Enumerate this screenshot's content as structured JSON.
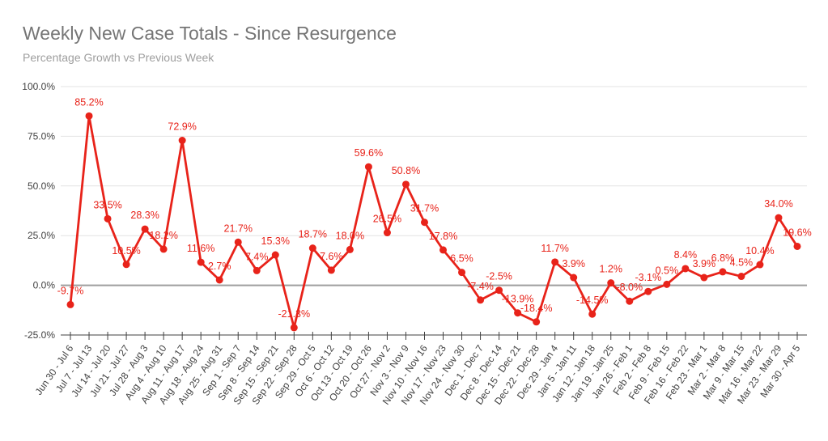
{
  "header": {
    "title": "Weekly New Case Totals - Since Resurgence",
    "subtitle": "Percentage Growth vs Previous Week"
  },
  "chart_data": {
    "type": "line",
    "title": "Weekly New Case Totals - Since Resurgence",
    "subtitle": "Percentage Growth vs Previous Week",
    "xlabel": "",
    "ylabel": "",
    "categories": [
      "Jun 30 - Jul 6",
      "Jul 7 - Jul 13",
      "Jul 14 - Jul 20",
      "Jul 21 - Jul 27",
      "Jul 28 - Aug 3",
      "Aug 4 - Aug 10",
      "Aug 11 - Aug 17",
      "Aug 18 - Aug 24",
      "Aug 25 - Aug 31",
      "Sep 1 - Sep 7",
      "Sep 8 - Sep 14",
      "Sep 15 - Sep 21",
      "Sep 22 - Sep 28",
      "Sep 29 - Oct 5",
      "Oct 6 - Oct 12",
      "Oct 13 - Oct 19",
      "Oct 20 - Oct 26",
      "Oct 27 - Nov 2",
      "Nov 3 - Nov 9",
      "Nov 10 - Nov 16",
      "Nov 17 - Nov 23",
      "Nov 24 - Nov 30",
      "Dec 1 - Dec 7",
      "Dec 8 - Dec 14",
      "Dec 15 - Dec 21",
      "Dec 22 - Dec 28",
      "Dec 29 - Jan 4",
      "Jan 5 - Jan 11",
      "Jan 12 - Jan 18",
      "Jan 19 - Jan 25",
      "Jan 26 - Feb 1",
      "Feb 2 - Feb 8",
      "Feb 9 - Feb 15",
      "Feb 16 - Feb 22",
      "Feb 23 - Mar 1",
      "Mar 2 - Mar 8",
      "Mar 9 - Mar 15",
      "Mar 16 - Mar 22",
      "Mar 23 - Mar 29",
      "Mar 30 - Apr 5"
    ],
    "values": [
      -9.7,
      85.2,
      33.5,
      10.5,
      28.3,
      18.2,
      72.9,
      11.6,
      2.7,
      21.7,
      7.4,
      15.3,
      -21.3,
      18.7,
      7.6,
      18.0,
      59.6,
      26.5,
      50.8,
      31.7,
      17.8,
      6.5,
      -7.4,
      -2.5,
      -13.9,
      -18.4,
      11.7,
      3.9,
      -14.5,
      1.2,
      -8.0,
      -3.1,
      0.5,
      8.4,
      3.9,
      6.8,
      4.5,
      10.4,
      34.0,
      19.6
    ],
    "data_labels_visible": true,
    "data_label_suffix": "%",
    "ylim": [
      -25,
      100
    ],
    "y_ticks": [
      100,
      75,
      50,
      25,
      0,
      -25
    ],
    "y_tick_labels": [
      "100.0%",
      "75.0%",
      "50.0%",
      "25.0%",
      "0.0%",
      "-25.0%"
    ],
    "grid": "horizontal",
    "legend": "none",
    "colors": {
      "series": "#e8231a",
      "title": "#757575",
      "subtitle": "#9e9e9e",
      "axis_text": "#424242",
      "gridline": "#e3e3e3",
      "zero_line": "#9e9e9e",
      "axis_line": "#424242",
      "background": "#ffffff"
    }
  }
}
